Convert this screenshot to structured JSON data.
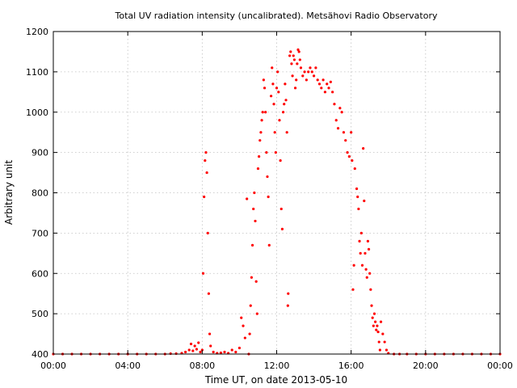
{
  "chart_data": {
    "type": "scatter",
    "title": "Total UV radiation intensity (uncalibrated). Metsähovi Radio Observatory",
    "xlabel": "Time UT, on date 2013-05-10",
    "ylabel": "Arbitrary unit",
    "x_unit": "hours UT",
    "xlim": [
      0,
      24
    ],
    "ylim": [
      400,
      1200
    ],
    "x_ticks": [
      0,
      4,
      8,
      12,
      16,
      20,
      24
    ],
    "x_tick_labels": [
      "00:00",
      "04:00",
      "08:00",
      "12:00",
      "16:00",
      "20:00",
      "00:00"
    ],
    "y_ticks": [
      400,
      500,
      600,
      700,
      800,
      900,
      1000,
      1100,
      1200
    ],
    "y_tick_labels": [
      "400",
      "500",
      "600",
      "700",
      "800",
      "900",
      "1000",
      "1100",
      "1200"
    ],
    "grid": true,
    "marker_color": "#ff0000",
    "series": [
      {
        "points": [
          [
            0.0,
            400
          ],
          [
            0.5,
            400
          ],
          [
            1.0,
            400
          ],
          [
            1.5,
            400
          ],
          [
            2.0,
            400
          ],
          [
            2.5,
            400
          ],
          [
            3.0,
            400
          ],
          [
            3.5,
            400
          ],
          [
            4.0,
            400
          ],
          [
            4.5,
            400
          ],
          [
            5.0,
            400
          ],
          [
            5.5,
            400
          ],
          [
            6.0,
            400
          ],
          [
            6.3,
            401
          ],
          [
            6.6,
            401
          ],
          [
            6.9,
            402
          ],
          [
            7.1,
            405
          ],
          [
            7.3,
            410
          ],
          [
            7.4,
            425
          ],
          [
            7.5,
            408
          ],
          [
            7.6,
            420
          ],
          [
            7.7,
            412
          ],
          [
            7.8,
            428
          ],
          [
            7.9,
            405
          ],
          [
            8.0,
            410
          ],
          [
            8.05,
            600
          ],
          [
            8.1,
            790
          ],
          [
            8.15,
            880
          ],
          [
            8.2,
            900
          ],
          [
            8.25,
            850
          ],
          [
            8.3,
            700
          ],
          [
            8.35,
            550
          ],
          [
            8.4,
            450
          ],
          [
            8.45,
            420
          ],
          [
            8.6,
            405
          ],
          [
            8.8,
            402
          ],
          [
            9.0,
            403
          ],
          [
            9.2,
            405
          ],
          [
            9.4,
            402
          ],
          [
            9.6,
            410
          ],
          [
            9.8,
            405
          ],
          [
            10.0,
            415
          ],
          [
            10.1,
            490
          ],
          [
            10.2,
            470
          ],
          [
            10.3,
            440
          ],
          [
            10.4,
            785
          ],
          [
            10.5,
            400
          ],
          [
            10.55,
            450
          ],
          [
            10.6,
            520
          ],
          [
            10.65,
            590
          ],
          [
            10.7,
            670
          ],
          [
            10.75,
            760
          ],
          [
            10.8,
            800
          ],
          [
            10.85,
            730
          ],
          [
            10.9,
            580
          ],
          [
            10.95,
            500
          ],
          [
            11.0,
            860
          ],
          [
            11.05,
            890
          ],
          [
            11.1,
            930
          ],
          [
            11.15,
            950
          ],
          [
            11.2,
            980
          ],
          [
            11.25,
            1000
          ],
          [
            11.3,
            1080
          ],
          [
            11.35,
            1060
          ],
          [
            11.4,
            1000
          ],
          [
            11.45,
            900
          ],
          [
            11.5,
            840
          ],
          [
            11.55,
            790
          ],
          [
            11.6,
            670
          ],
          [
            11.7,
            1040
          ],
          [
            11.75,
            1110
          ],
          [
            11.8,
            1070
          ],
          [
            11.85,
            1020
          ],
          [
            11.9,
            950
          ],
          [
            11.95,
            900
          ],
          [
            12.0,
            1060
          ],
          [
            12.05,
            1100
          ],
          [
            12.1,
            1050
          ],
          [
            12.15,
            980
          ],
          [
            12.2,
            880
          ],
          [
            12.25,
            760
          ],
          [
            12.3,
            710
          ],
          [
            12.35,
            1000
          ],
          [
            12.4,
            1020
          ],
          [
            12.45,
            1070
          ],
          [
            12.5,
            1030
          ],
          [
            12.55,
            950
          ],
          [
            12.6,
            520
          ],
          [
            12.62,
            550
          ],
          [
            12.7,
            1140
          ],
          [
            12.75,
            1150
          ],
          [
            12.8,
            1120
          ],
          [
            12.85,
            1090
          ],
          [
            12.9,
            1140
          ],
          [
            12.95,
            1130
          ],
          [
            13.0,
            1060
          ],
          [
            13.05,
            1080
          ],
          [
            13.1,
            1120
          ],
          [
            13.15,
            1155
          ],
          [
            13.2,
            1150
          ],
          [
            13.25,
            1130
          ],
          [
            13.3,
            1110
          ],
          [
            13.4,
            1090
          ],
          [
            13.5,
            1100
          ],
          [
            13.6,
            1080
          ],
          [
            13.7,
            1100
          ],
          [
            13.8,
            1110
          ],
          [
            13.9,
            1100
          ],
          [
            14.0,
            1090
          ],
          [
            14.1,
            1110
          ],
          [
            14.2,
            1080
          ],
          [
            14.3,
            1070
          ],
          [
            14.4,
            1060
          ],
          [
            14.5,
            1080
          ],
          [
            14.6,
            1050
          ],
          [
            14.7,
            1070
          ],
          [
            14.8,
            1060
          ],
          [
            14.9,
            1075
          ],
          [
            15.0,
            1050
          ],
          [
            15.1,
            1020
          ],
          [
            15.2,
            980
          ],
          [
            15.3,
            960
          ],
          [
            15.4,
            1010
          ],
          [
            15.5,
            1000
          ],
          [
            15.6,
            950
          ],
          [
            15.7,
            930
          ],
          [
            15.8,
            900
          ],
          [
            15.9,
            890
          ],
          [
            16.0,
            950
          ],
          [
            16.05,
            880
          ],
          [
            16.1,
            560
          ],
          [
            16.15,
            620
          ],
          [
            16.2,
            860
          ],
          [
            16.3,
            810
          ],
          [
            16.35,
            790
          ],
          [
            16.4,
            760
          ],
          [
            16.45,
            680
          ],
          [
            16.5,
            650
          ],
          [
            16.55,
            700
          ],
          [
            16.6,
            620
          ],
          [
            16.65,
            910
          ],
          [
            16.7,
            780
          ],
          [
            16.75,
            650
          ],
          [
            16.8,
            610
          ],
          [
            16.85,
            590
          ],
          [
            16.9,
            680
          ],
          [
            16.95,
            660
          ],
          [
            17.0,
            600
          ],
          [
            17.05,
            560
          ],
          [
            17.1,
            520
          ],
          [
            17.15,
            490
          ],
          [
            17.2,
            470
          ],
          [
            17.25,
            500
          ],
          [
            17.3,
            480
          ],
          [
            17.35,
            460
          ],
          [
            17.4,
            470
          ],
          [
            17.45,
            455
          ],
          [
            17.5,
            430
          ],
          [
            17.55,
            410
          ],
          [
            17.6,
            480
          ],
          [
            17.7,
            450
          ],
          [
            17.8,
            430
          ],
          [
            17.9,
            410
          ],
          [
            18.0,
            402
          ],
          [
            18.3,
            400
          ],
          [
            18.6,
            400
          ],
          [
            19.0,
            400
          ],
          [
            19.5,
            400
          ],
          [
            20.0,
            400
          ],
          [
            20.5,
            400
          ],
          [
            21.0,
            400
          ],
          [
            21.5,
            400
          ],
          [
            22.0,
            400
          ],
          [
            22.5,
            400
          ],
          [
            23.0,
            400
          ],
          [
            23.5,
            400
          ],
          [
            24.0,
            400
          ]
        ]
      }
    ]
  }
}
